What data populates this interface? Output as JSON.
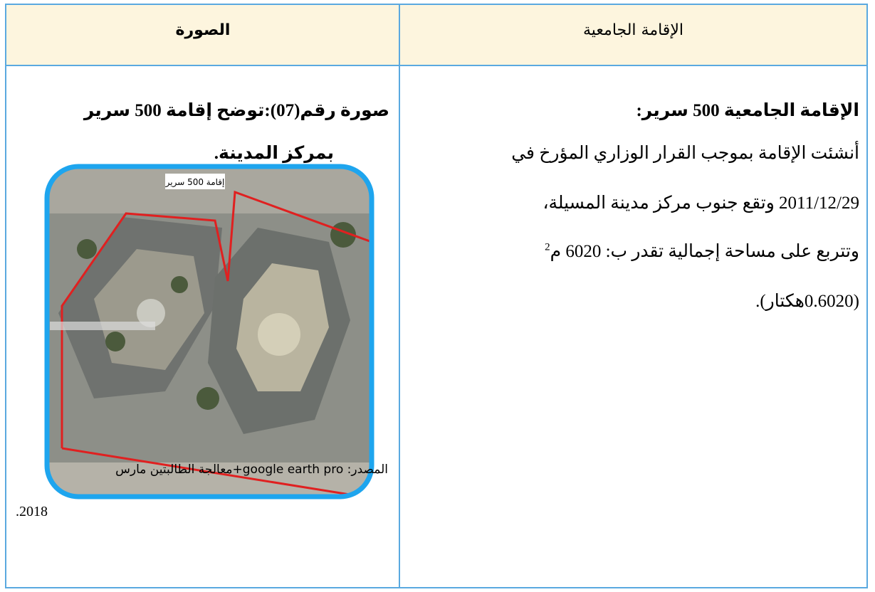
{
  "table": {
    "header": {
      "image_column": "الصورة",
      "residence_column": "الإقامة الجامعية"
    },
    "residence": {
      "heading": "الإقامة الجامعية 500 سرير:",
      "lines": [
        "أنشئت الإقامة بموجب القرار الوزاري المؤرخ في",
        "2011/12/29 وتقع جنوب مركز مدينة المسيلة،",
        "وتتربع على مساحة إجمالية تقدر ب: 6020 م",
        "(0.6020هكتار)."
      ],
      "area_unit_power": "2"
    },
    "photo": {
      "caption_lines": [
        "صورة رقم(07):توضح إقامة 500 سرير",
        "بمركز المدينة."
      ],
      "image_label": "إقامة 500 سرير",
      "source_lines": [
        "المصدر: google earth pro+معالجة الطالبتين مارس",
        "2018."
      ]
    }
  }
}
